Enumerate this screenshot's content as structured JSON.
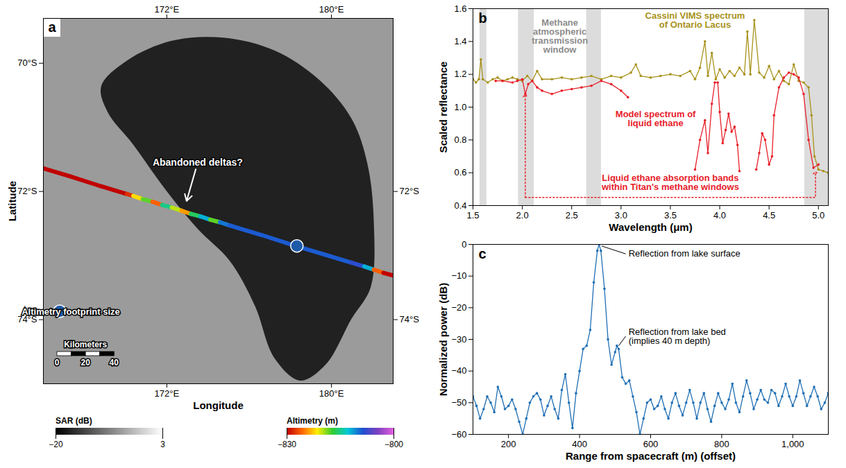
{
  "chart_data": [
    {
      "type": "map",
      "panel": "a",
      "x_label": "Longitude",
      "y_label": "Latitude",
      "xlim": [
        166,
        183
      ],
      "xticks": [
        {
          "value": 172,
          "label": "172°E"
        },
        {
          "value": 180,
          "label": "180°E"
        }
      ],
      "ylim": [
        -75,
        -69.3
      ],
      "yticks": [
        {
          "value": -70,
          "label": "70°S"
        },
        {
          "value": -72,
          "label": "72°S"
        },
        {
          "value": -74,
          "label": "74°S"
        }
      ],
      "y2ticks": [
        {
          "value": -72,
          "label": "72°S"
        },
        {
          "value": -74,
          "label": "74°S"
        }
      ],
      "background_sar_db": -6,
      "lake": {
        "sar_db": -17,
        "lon": [
          168.81,
          170.06,
          172.24,
          174.73,
          177.23,
          179.41,
          180.97,
          181.75,
          182.06,
          181.91,
          180.97,
          179.72,
          178.48,
          177.23,
          176.29,
          175.05,
          173.49,
          171.93,
          170.37,
          169.12
        ],
        "lat": [
          -70.36,
          -69.96,
          -69.65,
          -69.6,
          -69.8,
          -70.26,
          -70.86,
          -71.57,
          -72.48,
          -73.49,
          -73.99,
          -74.7,
          -74.95,
          -74.6,
          -73.79,
          -73.08,
          -72.58,
          -71.97,
          -71.27,
          -70.76
        ]
      },
      "track": {
        "lon": [
          166.0,
          167.25,
          168.81,
          170.06,
          170.37,
          170.83,
          171.3,
          171.77,
          172.24,
          172.71,
          173.17,
          173.64,
          174.11,
          174.58,
          175.05,
          176.61,
          178.17,
          179.72,
          180.97,
          181.6,
          182.06,
          182.53,
          183.0
        ],
        "lat": [
          -71.64,
          -71.76,
          -71.92,
          -72.04,
          -72.07,
          -72.12,
          -72.16,
          -72.21,
          -72.25,
          -72.3,
          -72.35,
          -72.39,
          -72.44,
          -72.48,
          -72.53,
          -72.68,
          -72.84,
          -72.99,
          -73.11,
          -73.17,
          -73.22,
          -73.27,
          -73.31
        ],
        "altimetry": [
          -830,
          -830,
          -830,
          -828,
          -822,
          -818,
          -826,
          -815,
          -820,
          -824,
          -816,
          -812,
          -818,
          -810,
          -809,
          -809,
          -809,
          -809,
          -808,
          -812,
          -826,
          -830,
          -830
        ]
      },
      "footprint": {
        "lon": 178.32,
        "lat": -72.85,
        "label": "Altimetry footprint size"
      },
      "scale_bar": {
        "label": "Kilometers",
        "ticks": [
          0,
          20,
          40
        ]
      },
      "annotations": [
        {
          "text": "Abandoned deltas?",
          "at": [
            173.5,
            -71.55
          ],
          "target": [
            172.96,
            -72.15
          ]
        }
      ],
      "sar_colorbar": {
        "label": "SAR (dB)",
        "range": [
          -20,
          3
        ],
        "ticks": [
          -20,
          3
        ]
      },
      "altimetry_colorbar": {
        "label": "Altimetry (m)",
        "range": [
          -830,
          -800
        ],
        "ticks": [
          -830,
          -800
        ]
      }
    },
    {
      "type": "line",
      "panel": "b",
      "x_label": "Wavelength (μm)",
      "y_label": "Scaled reflectance",
      "xlim": [
        1.5,
        5.1
      ],
      "xticks": [
        1.5,
        {
          "value": 2,
          "label": "2.0"
        },
        2.5,
        {
          "value": 3,
          "label": "3.0"
        },
        3.5,
        {
          "value": 4,
          "label": "4.0"
        },
        4.5,
        {
          "value": 5,
          "label": "5.0"
        }
      ],
      "ylim": [
        0.4,
        1.6
      ],
      "yticks": [
        0.4,
        0.6,
        0.8,
        {
          "value": 1,
          "label": "1.0"
        },
        1.2,
        1.4,
        1.6
      ],
      "bands": [
        [
          1.57,
          1.64
        ],
        [
          1.96,
          2.12
        ],
        [
          2.65,
          2.8
        ],
        [
          4.86,
          5.1
        ]
      ],
      "series": [
        {
          "name": "Cassini VIMS spectrum of Ontario Lacus",
          "color": "#a8921c",
          "marker": "circle",
          "label_at": [
            3.75,
            1.53
          ],
          "x": [
            1.5,
            1.53,
            1.56,
            1.58,
            1.6,
            1.65,
            1.7,
            1.75,
            1.8,
            1.85,
            1.9,
            1.95,
            2.0,
            2.05,
            2.1,
            2.15,
            2.2,
            2.3,
            2.4,
            2.5,
            2.6,
            2.7,
            2.8,
            2.9,
            3.0,
            3.1,
            3.15,
            3.2,
            3.3,
            3.4,
            3.5,
            3.6,
            3.7,
            3.75,
            3.8,
            3.85,
            3.88,
            3.92,
            3.96,
            4.0,
            4.05,
            4.1,
            4.15,
            4.2,
            4.25,
            4.28,
            4.31,
            4.35,
            4.4,
            4.45,
            4.5,
            4.55,
            4.6,
            4.65,
            4.7,
            4.75,
            4.8,
            4.85,
            4.9,
            4.93,
            4.96,
            5.0,
            5.05,
            5.1
          ],
          "values": [
            1.17,
            1.15,
            1.17,
            1.29,
            1.17,
            1.15,
            1.17,
            1.18,
            1.16,
            1.17,
            1.18,
            1.17,
            1.16,
            1.19,
            1.16,
            1.22,
            1.17,
            1.17,
            1.18,
            1.17,
            1.18,
            1.19,
            1.17,
            1.19,
            1.18,
            1.21,
            1.26,
            1.19,
            1.18,
            1.19,
            1.2,
            1.19,
            1.22,
            1.17,
            1.24,
            1.4,
            1.19,
            1.33,
            1.17,
            1.23,
            1.18,
            1.22,
            1.19,
            1.24,
            1.2,
            1.46,
            1.2,
            1.53,
            1.21,
            1.18,
            1.25,
            1.17,
            1.22,
            1.16,
            1.14,
            1.26,
            1.16,
            1.15,
            1.12,
            0.95,
            0.7,
            0.62,
            0.61,
            0.6
          ]
        },
        {
          "name": "Model spectrum of liquid ethane",
          "color": "#e8202a",
          "marker": "circle",
          "label_at": [
            3.35,
            0.93
          ],
          "x": [
            1.73,
            1.8,
            1.9,
            1.95,
            2.0,
            2.03,
            2.06,
            2.1,
            2.15,
            2.2,
            2.3,
            2.4,
            2.5,
            2.6,
            2.7,
            2.8,
            2.9,
            3.0,
            3.07,
            3.4,
            3.75,
            3.8,
            3.85,
            3.88,
            3.92,
            3.95,
            3.98,
            4.0,
            4.03,
            4.06,
            4.09,
            4.12,
            4.15,
            4.18,
            4.2,
            4.3,
            4.37,
            4.4,
            4.43,
            4.46,
            4.5,
            4.53,
            4.55,
            4.6,
            4.65,
            4.7,
            4.75,
            4.8,
            4.85,
            4.9,
            4.95,
            5.0
          ],
          "values": [
            1.16,
            1.16,
            1.15,
            1.16,
            1.17,
            1.08,
            1.14,
            1.16,
            1.12,
            1.1,
            1.08,
            1.1,
            1.11,
            1.12,
            1.13,
            1.16,
            1.14,
            1.1,
            1.06,
            null,
            0.62,
            0.8,
            0.92,
            0.72,
            1.02,
            1.15,
            1.15,
            0.97,
            0.78,
            0.86,
            0.96,
            0.85,
            0.88,
            0.77,
            0.61,
            null,
            0.62,
            0.72,
            0.84,
            0.8,
            0.65,
            0.7,
            0.95,
            1.12,
            1.18,
            1.21,
            1.2,
            1.18,
            1.08,
            0.8,
            0.63,
            0.65
          ]
        }
      ],
      "annotations": [
        {
          "text": "Methane atmospheric transmission window",
          "color": "#8c8c8c",
          "at": [
            2.38,
            1.43
          ]
        },
        {
          "text": "Liquid ethane absorption bands within Titan's methane windows",
          "color": "#e8202a",
          "at": [
            3.5,
            0.54
          ],
          "bracket": [
            [
              2.03,
              1.07
            ],
            [
              2.03,
              0.45
            ],
            [
              4.97,
              0.45
            ],
            [
              4.97,
              0.6
            ]
          ]
        }
      ]
    },
    {
      "type": "line",
      "panel": "c",
      "x_label": "Range from spacecraft (m) (offset)",
      "y_label": "Normalized power (dB)",
      "xlim": [
        100,
        1100
      ],
      "xticks": [
        200,
        400,
        600,
        800,
        {
          "value": 1000,
          "label": "1,000"
        }
      ],
      "ylim": [
        -60,
        0
      ],
      "yticks": [
        -60,
        -50,
        -40,
        -30,
        -20,
        -10,
        0
      ],
      "series": [
        {
          "color": "#1f6fb4",
          "marker": "circle",
          "x": [
            100,
            110,
            120,
            130,
            140,
            150,
            160,
            170,
            180,
            190,
            200,
            210,
            220,
            230,
            240,
            250,
            260,
            270,
            280,
            290,
            300,
            310,
            320,
            330,
            340,
            350,
            360,
            370,
            380,
            390,
            400,
            410,
            420,
            430,
            440,
            450,
            455,
            460,
            470,
            480,
            490,
            500,
            505,
            510,
            520,
            530,
            540,
            550,
            560,
            570,
            580,
            590,
            600,
            610,
            620,
            630,
            640,
            650,
            660,
            670,
            680,
            690,
            700,
            710,
            720,
            730,
            740,
            750,
            760,
            770,
            780,
            790,
            800,
            810,
            820,
            830,
            840,
            850,
            860,
            870,
            880,
            890,
            900,
            910,
            920,
            930,
            940,
            950,
            960,
            970,
            980,
            990,
            1000,
            1010,
            1020,
            1030,
            1040,
            1050,
            1060,
            1070,
            1080,
            1090,
            1100
          ],
          "values": [
            -48,
            -51,
            -55,
            -52,
            -48,
            -50,
            -53,
            -45,
            -48,
            -52,
            -51,
            -49,
            -52,
            -56,
            -60,
            -55,
            -50,
            -48,
            -47,
            -49,
            -54,
            -51,
            -48,
            -52,
            -55,
            -46,
            -41,
            -50,
            -58,
            -47,
            -40,
            -33,
            -32,
            -27,
            -12,
            -2,
            0,
            -2,
            -14,
            -30,
            -38,
            -34,
            -32,
            -33,
            -42,
            -44,
            -43,
            -48,
            -53,
            -60,
            -55,
            -50,
            -49,
            -52,
            -51,
            -48,
            -52,
            -55,
            -50,
            -47,
            -51,
            -54,
            -50,
            -46,
            -50,
            -55,
            -50,
            -47,
            -52,
            -56,
            -51,
            -47,
            -50,
            -52,
            -49,
            -44,
            -50,
            -53,
            -48,
            -43,
            -47,
            -52,
            -49,
            -46,
            -49,
            -50,
            -46,
            -47,
            -51,
            -48,
            -44,
            -48,
            -51,
            -48,
            -43,
            -47,
            -51,
            -48,
            -45,
            -48,
            -52,
            -50,
            -47
          ]
        }
      ],
      "annotations": [
        {
          "text": "Reflection from lake surface",
          "at": [
            530,
            -3
          ],
          "target": [
            462,
            -0.5
          ]
        },
        {
          "text": "Reflection from lake bed (implies 40 m depth)",
          "at": [
            530,
            -29
          ],
          "target": [
            510,
            -32
          ]
        }
      ]
    }
  ]
}
